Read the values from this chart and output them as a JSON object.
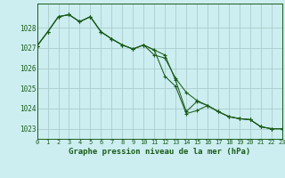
{
  "title": "Graphe pression niveau de la mer (hPa)",
  "background_color": "#cceef0",
  "grid_color": "#aacccc",
  "line_color": "#1a5c1a",
  "xlim": [
    0,
    23
  ],
  "ylim": [
    1022.5,
    1029.2
  ],
  "yticks": [
    1023,
    1024,
    1025,
    1026,
    1027,
    1028
  ],
  "xticks": [
    0,
    1,
    2,
    3,
    4,
    5,
    6,
    7,
    8,
    9,
    10,
    11,
    12,
    13,
    14,
    15,
    16,
    17,
    18,
    19,
    20,
    21,
    22,
    23
  ],
  "series": [
    [
      1027.1,
      1027.8,
      1028.55,
      1028.65,
      1028.3,
      1028.55,
      1027.8,
      1027.45,
      1027.15,
      1026.95,
      1027.15,
      1026.65,
      1026.5,
      1025.5,
      1024.8,
      1024.4,
      1024.15,
      1023.85,
      1023.6,
      1023.5,
      1023.45,
      1023.1,
      1023.0,
      1023.0
    ],
    [
      1027.1,
      1027.8,
      1028.55,
      1028.65,
      1028.3,
      1028.55,
      1027.8,
      1027.45,
      1027.15,
      1026.95,
      1027.15,
      1026.9,
      1025.6,
      1025.1,
      1023.75,
      1023.9,
      1024.15,
      1023.85,
      1023.6,
      1023.5,
      1023.45,
      1023.1,
      1023.0,
      1023.0
    ],
    [
      1027.1,
      1027.8,
      1028.55,
      1028.65,
      1028.3,
      1028.55,
      1027.8,
      1027.45,
      1027.15,
      1026.95,
      1027.15,
      1026.9,
      1026.65,
      1025.4,
      1023.85,
      1024.35,
      1024.15,
      1023.85,
      1023.6,
      1023.5,
      1023.45,
      1023.1,
      1023.0,
      1023.0
    ]
  ],
  "xlabel_fontsize": 6.5,
  "title_fontsize": 6.5
}
